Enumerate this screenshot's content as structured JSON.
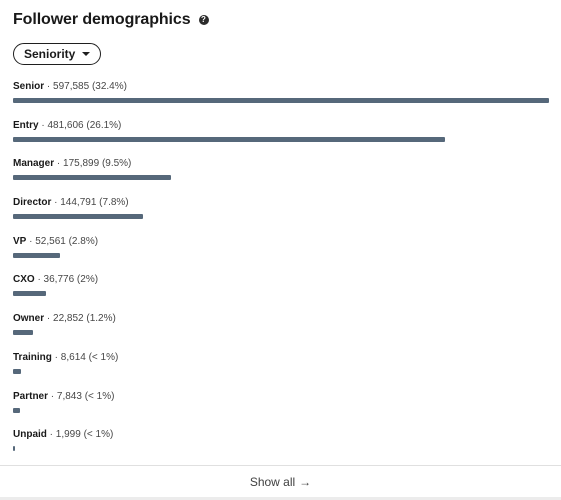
{
  "header": {
    "title": "Follower demographics",
    "help_icon": "question-circle-icon"
  },
  "filter": {
    "selected": "Seniority",
    "caret_icon": "caret-down-icon"
  },
  "rows": [
    {
      "label": "Senior",
      "detail": " · 597,585 (32.4%)",
      "count": 597585,
      "percent_display": "32.4%"
    },
    {
      "label": "Entry",
      "detail": " · 481,606 (26.1%)",
      "count": 481606,
      "percent_display": "26.1%"
    },
    {
      "label": "Manager",
      "detail": " · 175,899 (9.5%)",
      "count": 175899,
      "percent_display": "9.5%"
    },
    {
      "label": "Director",
      "detail": " · 144,791 (7.8%)",
      "count": 144791,
      "percent_display": "7.8%"
    },
    {
      "label": "VP",
      "detail": " · 52,561 (2.8%)",
      "count": 52561,
      "percent_display": "2.8%"
    },
    {
      "label": "CXO",
      "detail": " · 36,776 (2%)",
      "count": 36776,
      "percent_display": "2%"
    },
    {
      "label": "Owner",
      "detail": " · 22,852 (1.2%)",
      "count": 22852,
      "percent_display": "1.2%"
    },
    {
      "label": "Training",
      "detail": " · 8,614 (< 1%)",
      "count": 8614,
      "percent_display": "< 1%"
    },
    {
      "label": "Partner",
      "detail": " · 7,843 (< 1%)",
      "count": 7843,
      "percent_display": "< 1%"
    },
    {
      "label": "Unpaid",
      "detail": " · 1,999 (< 1%)",
      "count": 1999,
      "percent_display": "< 1%"
    }
  ],
  "footer": {
    "show_all_label": "Show all",
    "arrow_icon": "arrow-right-icon"
  },
  "colors": {
    "bar": "#56687a"
  }
}
